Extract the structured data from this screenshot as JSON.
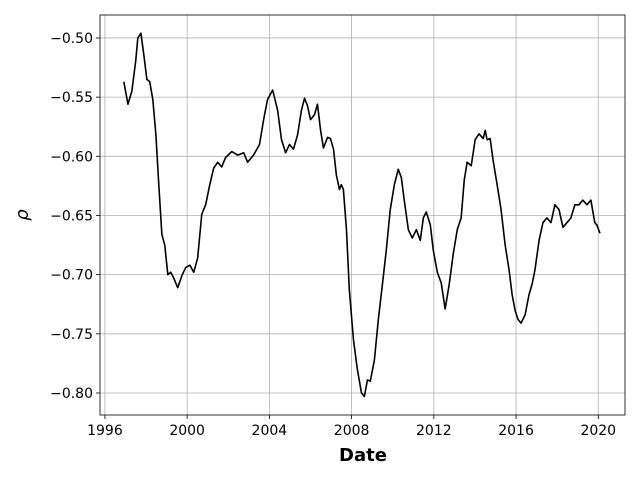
{
  "chart_data": {
    "type": "line",
    "xlabel": "Date",
    "ylabel": "ρ",
    "x": [
      1996.92,
      1997.12,
      1997.31,
      1997.5,
      1997.6,
      1997.75,
      1997.89,
      1998.04,
      1998.18,
      1998.33,
      1998.48,
      1998.62,
      1998.77,
      1998.91,
      1999.06,
      1999.2,
      1999.35,
      1999.54,
      1999.74,
      1999.93,
      2000.13,
      2000.32,
      2000.51,
      2000.71,
      2000.9,
      2001.1,
      2001.29,
      2001.49,
      2001.68,
      2001.87,
      2002.17,
      2002.46,
      2002.75,
      2002.94,
      2003.23,
      2003.52,
      2003.72,
      2003.91,
      2004.16,
      2004.4,
      2004.59,
      2004.79,
      2004.98,
      2005.17,
      2005.37,
      2005.56,
      2005.71,
      2005.85,
      2006.0,
      2006.19,
      2006.34,
      2006.49,
      2006.63,
      2006.83,
      2006.97,
      2007.12,
      2007.26,
      2007.41,
      2007.5,
      2007.6,
      2007.75,
      2007.89,
      2008.09,
      2008.28,
      2008.48,
      2008.62,
      2008.77,
      2008.91,
      2009.11,
      2009.3,
      2009.5,
      2009.69,
      2009.88,
      2010.08,
      2010.27,
      2010.42,
      2010.56,
      2010.76,
      2010.95,
      2011.15,
      2011.34,
      2011.49,
      2011.63,
      2011.83,
      2011.97,
      2012.17,
      2012.36,
      2012.55,
      2012.75,
      2012.94,
      2013.14,
      2013.33,
      2013.48,
      2013.62,
      2013.82,
      2014.01,
      2014.2,
      2014.4,
      2014.5,
      2014.59,
      2014.74,
      2014.88,
      2015.08,
      2015.27,
      2015.47,
      2015.66,
      2015.81,
      2015.95,
      2016.1,
      2016.24,
      2016.44,
      2016.63,
      2016.78,
      2016.92,
      2017.12,
      2017.31,
      2017.5,
      2017.7,
      2017.89,
      2018.09,
      2018.28,
      2018.48,
      2018.67,
      2018.86,
      2019.06,
      2019.25,
      2019.45,
      2019.64,
      2019.83,
      2019.93,
      2020.08
    ],
    "series": [
      {
        "color": "#000000",
        "values": [
          -0.537,
          -0.556,
          -0.545,
          -0.519,
          -0.5,
          -0.496,
          -0.514,
          -0.535,
          -0.537,
          -0.552,
          -0.582,
          -0.624,
          -0.666,
          -0.675,
          -0.7,
          -0.698,
          -0.703,
          -0.711,
          -0.701,
          -0.694,
          -0.692,
          -0.698,
          -0.686,
          -0.649,
          -0.641,
          -0.624,
          -0.61,
          -0.605,
          -0.609,
          -0.601,
          -0.596,
          -0.599,
          -0.597,
          -0.605,
          -0.599,
          -0.59,
          -0.569,
          -0.552,
          -0.544,
          -0.561,
          -0.586,
          -0.597,
          -0.59,
          -0.594,
          -0.582,
          -0.561,
          -0.551,
          -0.557,
          -0.569,
          -0.565,
          -0.556,
          -0.578,
          -0.593,
          -0.584,
          -0.585,
          -0.594,
          -0.616,
          -0.628,
          -0.624,
          -0.628,
          -0.662,
          -0.713,
          -0.755,
          -0.78,
          -0.8,
          -0.803,
          -0.789,
          -0.79,
          -0.772,
          -0.738,
          -0.708,
          -0.679,
          -0.645,
          -0.624,
          -0.611,
          -0.618,
          -0.637,
          -0.662,
          -0.669,
          -0.662,
          -0.671,
          -0.652,
          -0.647,
          -0.658,
          -0.679,
          -0.698,
          -0.707,
          -0.729,
          -0.708,
          -0.683,
          -0.662,
          -0.652,
          -0.62,
          -0.605,
          -0.608,
          -0.586,
          -0.581,
          -0.585,
          -0.578,
          -0.586,
          -0.585,
          -0.603,
          -0.624,
          -0.645,
          -0.675,
          -0.696,
          -0.717,
          -0.73,
          -0.738,
          -0.741,
          -0.734,
          -0.717,
          -0.708,
          -0.696,
          -0.671,
          -0.656,
          -0.652,
          -0.656,
          -0.641,
          -0.645,
          -0.66,
          -0.656,
          -0.652,
          -0.641,
          -0.641,
          -0.637,
          -0.641,
          -0.637,
          -0.656,
          -0.658,
          -0.665
        ]
      }
    ],
    "xlim": [
      1995.76,
      2021.3
    ],
    "xticks": [
      1996,
      2000,
      2004,
      2008,
      2012,
      2016,
      2020
    ],
    "ylim": [
      -0.8186,
      -0.4806
    ],
    "yticks": [
      {
        "value": -0.8,
        "label": "−0.80"
      },
      {
        "value": -0.75,
        "label": "−0.75"
      },
      {
        "value": -0.7,
        "label": "−0.70"
      },
      {
        "value": -0.65,
        "label": "−0.65"
      },
      {
        "value": -0.6,
        "label": "−0.60"
      },
      {
        "value": -0.55,
        "label": "−0.55"
      },
      {
        "value": -0.5,
        "label": "−0.50"
      }
    ],
    "grid": true
  }
}
